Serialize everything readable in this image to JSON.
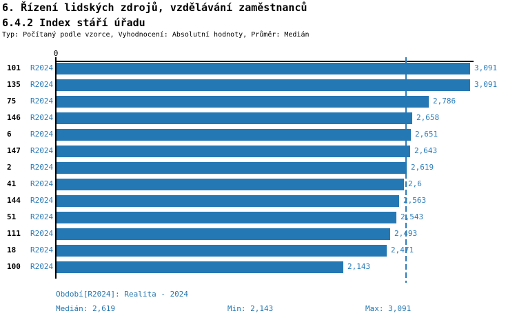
{
  "header": {
    "title_line1": "6. Řízení lidských zdrojů, vzdělávání zaměstnanců",
    "title_line2": "6.4.2 Index stáří úřadu",
    "subtitle": "Typ: Počítaný podle vzorce, Vyhodnocení: Absolutní hodnoty, Průměr: Medián"
  },
  "colors": {
    "bar": "#2478b4",
    "blue_text": "#2d7db9",
    "axis": "#000000",
    "median_line": "#2d7db9"
  },
  "chart_data": {
    "type": "bar",
    "orientation": "horizontal",
    "title": "6.4.2 Index stáří úřadu",
    "series_name": "R2024",
    "categories": [
      "101",
      "135",
      "75",
      "146",
      "6",
      "147",
      "2",
      "41",
      "144",
      "51",
      "111",
      "18",
      "100"
    ],
    "values": [
      3.091,
      3.091,
      2.786,
      2.658,
      2.651,
      2.643,
      2.619,
      2.6,
      2.563,
      2.543,
      2.493,
      2.471,
      2.143
    ],
    "value_labels": [
      "3,091",
      "3,091",
      "2,786",
      "2,658",
      "2,651",
      "2,643",
      "2,619",
      "2,6",
      "2,563",
      "2,543",
      "2,493",
      "2,471",
      "2,143"
    ],
    "xlabel": "",
    "ylabel": "",
    "x_axis": {
      "zero_label": "0",
      "min": 0,
      "max": 3.12
    },
    "median_value": 2.619,
    "median_line_dashed": true,
    "grid": false,
    "legend_position": "none"
  },
  "footer": {
    "period": "Období[R2024]: Realita - 2024",
    "median": "Medián: 2,619",
    "min": "Min: 2,143",
    "max": "Max: 3,091"
  }
}
